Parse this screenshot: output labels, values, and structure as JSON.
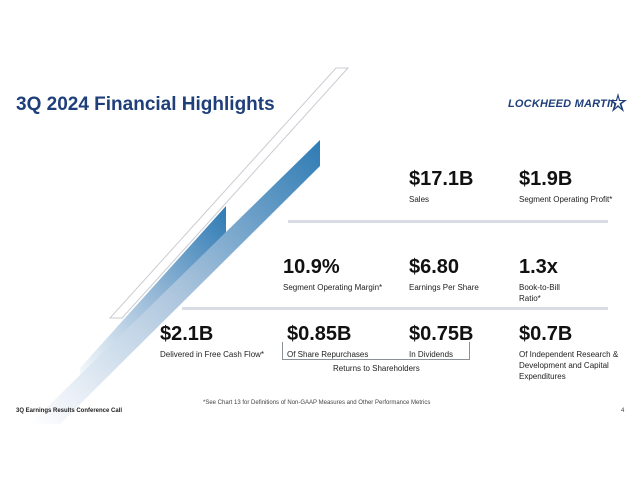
{
  "title": "3Q 2024 Financial Highlights",
  "logo": {
    "text": "LOCKHEED MARTIN",
    "color": "#1f3f7a"
  },
  "colors": {
    "accent_blue": "#2e7bb4",
    "title_blue": "#1f3f7a",
    "rule_gray": "#d9dce3"
  },
  "metrics": [
    {
      "value": "$17.1B",
      "label": "Sales"
    },
    {
      "value": "$1.9B",
      "label": "Segment Operating Profit*"
    },
    {
      "value": "10.9%",
      "label": "Segment Operating Margin*"
    },
    {
      "value": "$6.80",
      "label": "Earnings Per Share"
    },
    {
      "value": "1.3x",
      "label": "Book-to-Bill Ratio*"
    },
    {
      "value": "$2.1B",
      "label": "Delivered in Free Cash Flow*"
    },
    {
      "value": "$0.85B",
      "label": "Of Share Repurchases"
    },
    {
      "value": "$0.75B",
      "label": "In Dividends"
    },
    {
      "value": "$0.7B",
      "label": "Of Independent Research & Development and Capital Expenditures"
    }
  ],
  "returns_label": "Returns to Shareholders",
  "footnote": "*See Chart 13 for Definitions of Non-GAAP Measures and Other Performance Metrics",
  "footer": {
    "left": "3Q Earnings Results Conference Call",
    "page": "4"
  }
}
